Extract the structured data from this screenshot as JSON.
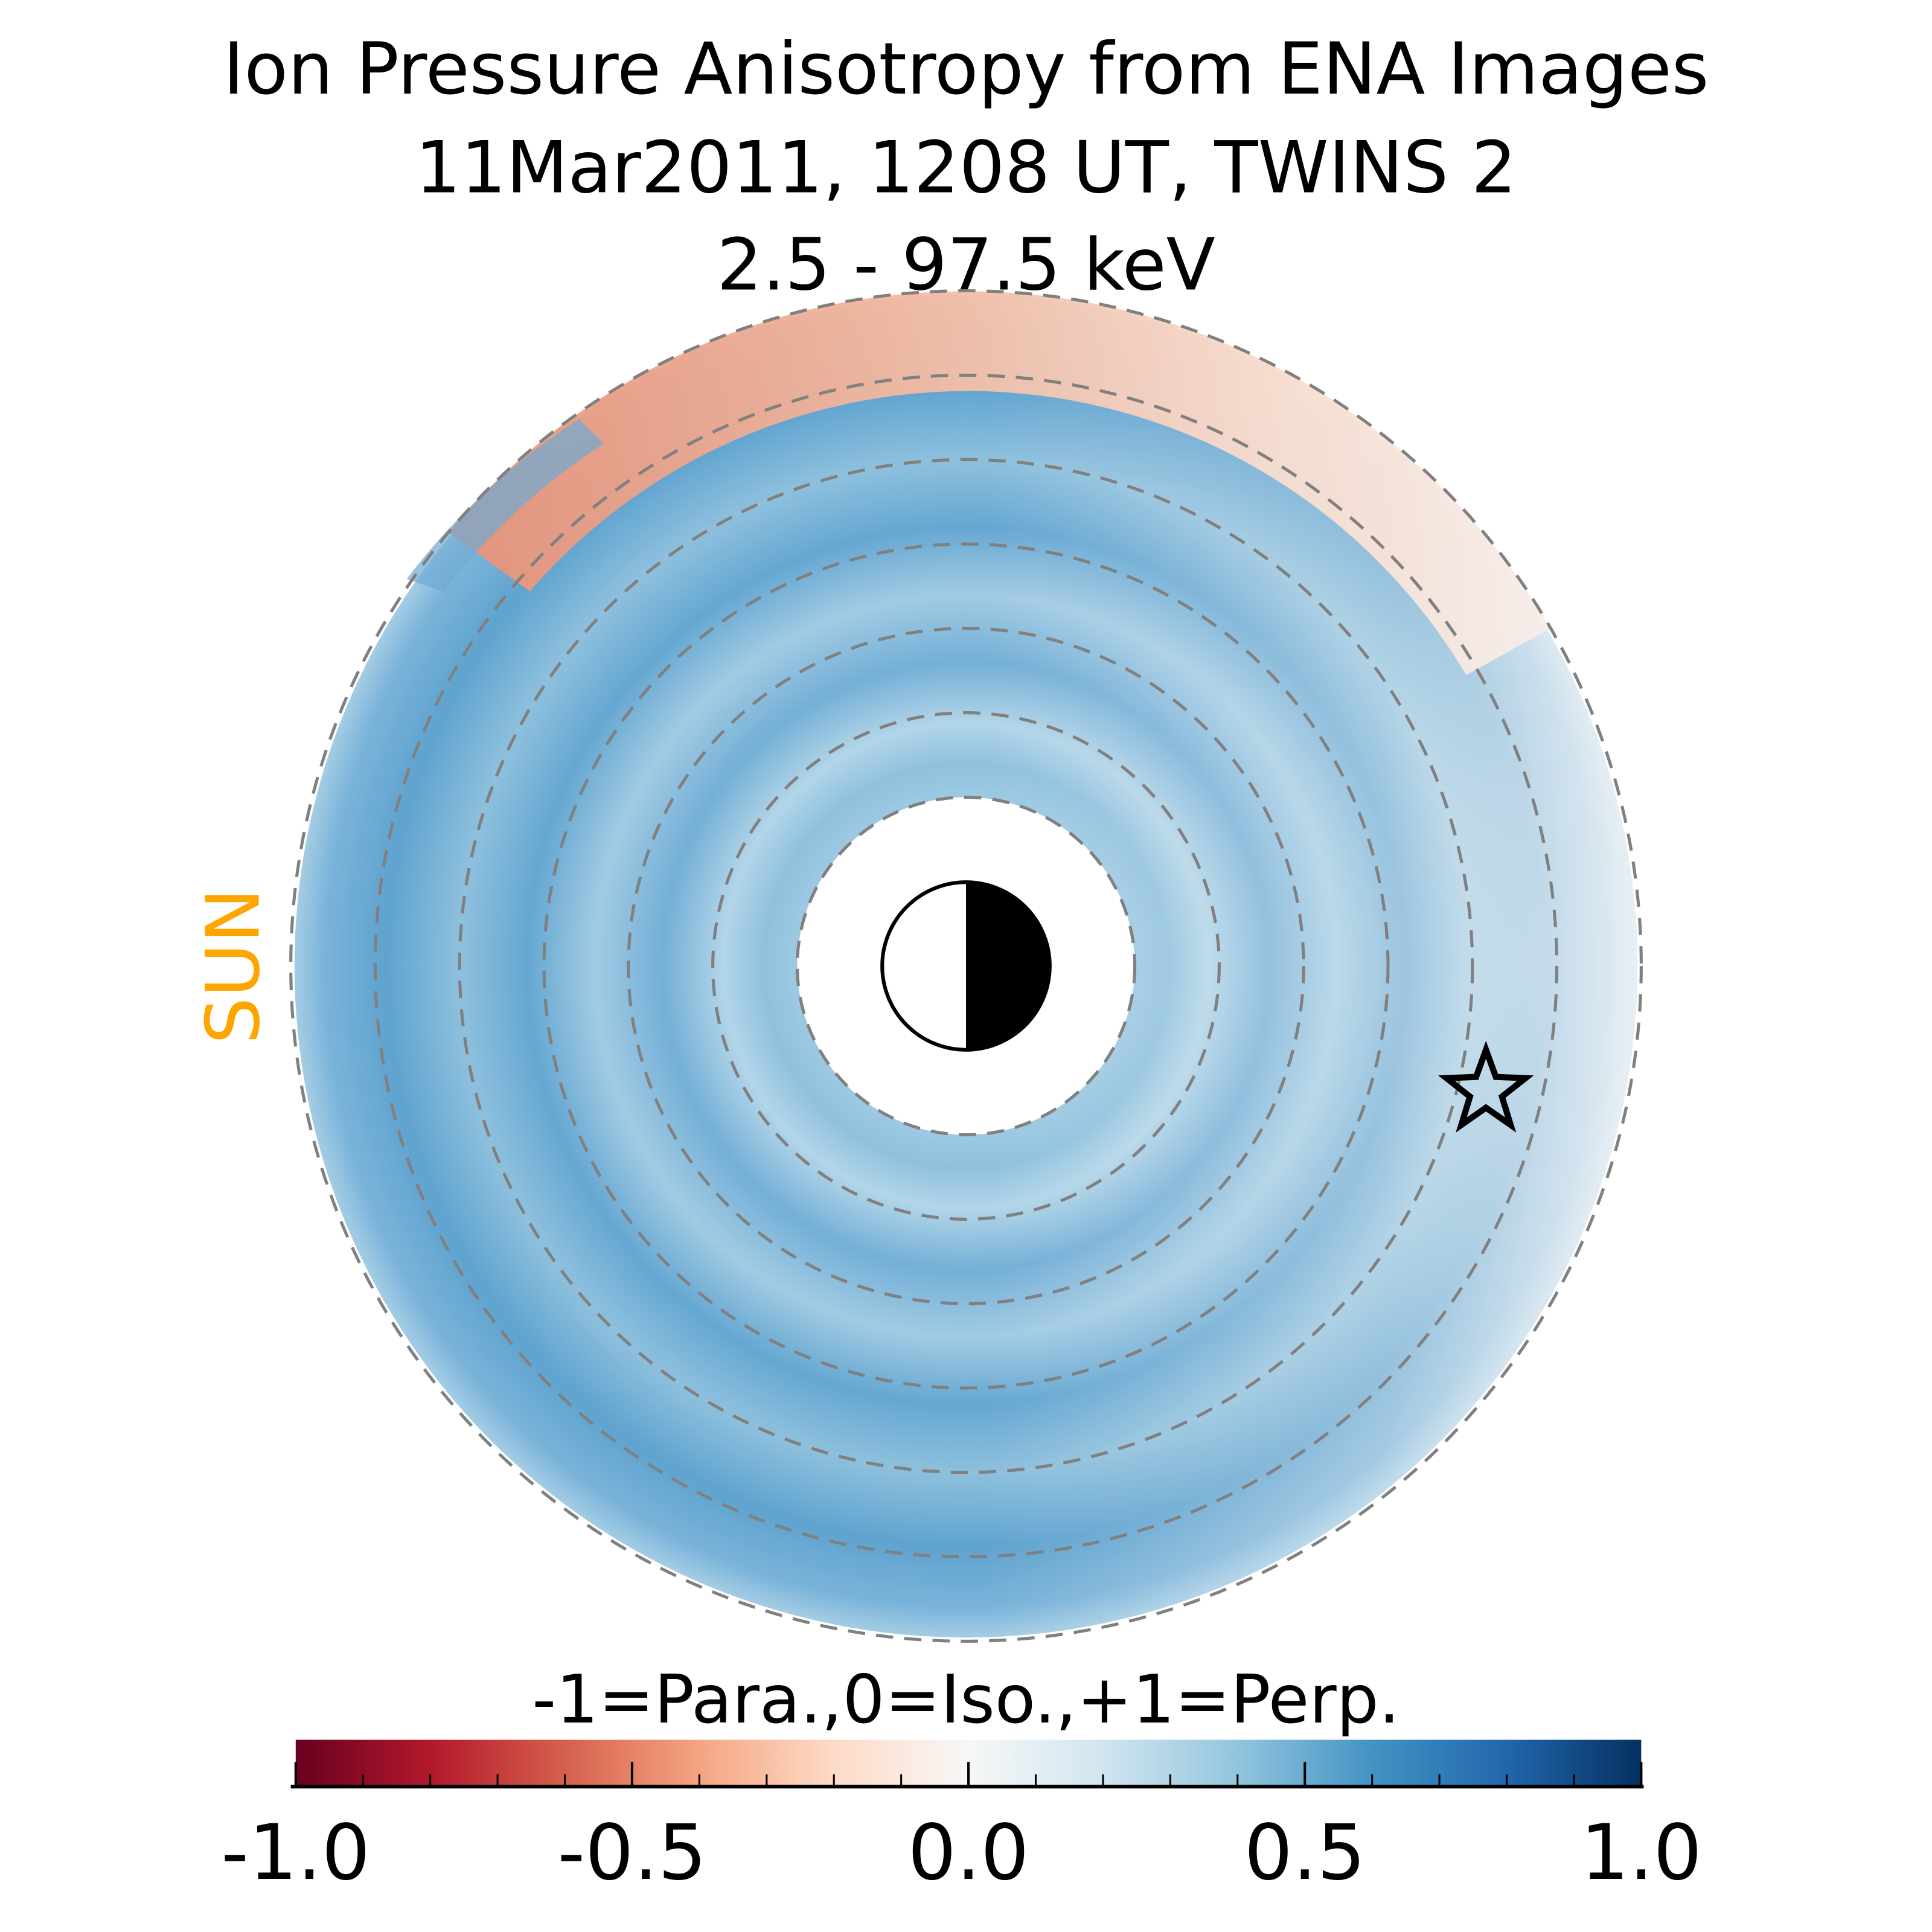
{
  "chart_data": {
    "type": "heatmap",
    "title": [
      "Ion Pressure Anisotropy from  ENA Images",
      "11Mar2011, 1208 UT,  TWINS 2",
      "2.5 - 97.5 keV"
    ],
    "sun_label": "SUN",
    "colorbar": {
      "label": "-1=Para.,0=Iso.,+1=Perp.",
      "range": [
        -1.0,
        1.0
      ],
      "colormap": [
        "#67001f",
        "#b2182b",
        "#d6604d",
        "#f4a582",
        "#fddbc7",
        "#f7f7f7",
        "#d1e5f0",
        "#92c5de",
        "#4393c3",
        "#2166ac",
        "#053061"
      ],
      "major_ticks": [
        -1.0,
        -0.5,
        0.0,
        0.5,
        1.0
      ],
      "tick_labels": [
        "-1.0",
        "-0.5",
        "0.0",
        "0.5",
        "1.0"
      ],
      "minor_step": 0.1
    },
    "description_values": {
      "dominant_value_range": [
        0.3,
        0.6
      ],
      "parallel_region_value_range": [
        -0.35,
        -0.1
      ]
    },
    "dashed_rings": 7,
    "colors": {
      "sun": "#ffa500",
      "rings": "#808080"
    }
  }
}
